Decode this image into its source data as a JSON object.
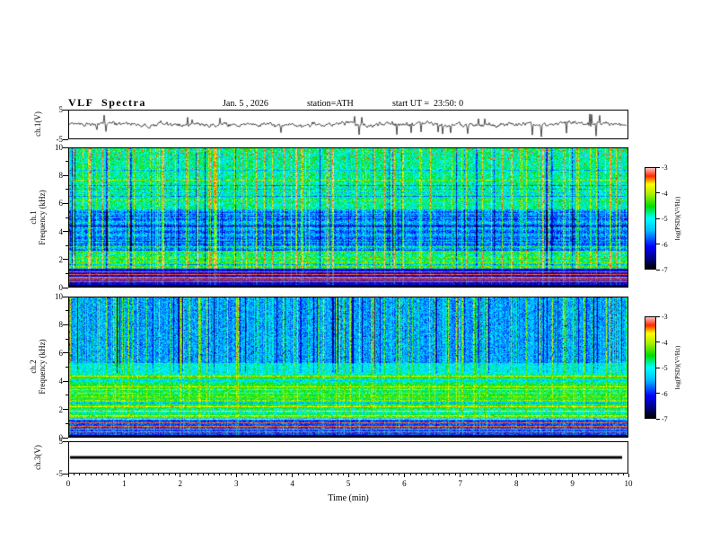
{
  "header": {
    "title": "VLF  Spectra",
    "date": "Jan. 5 , 2026",
    "station": "station=ATH",
    "start_ut": "start UT =  23:50: 0"
  },
  "x_axis": {
    "label": "Time (min)",
    "min": 0,
    "max": 10,
    "tick_labels": [
      "0",
      "1",
      "2",
      "3",
      "4",
      "5",
      "6",
      "7",
      "8",
      "9",
      "10"
    ]
  },
  "panels": {
    "ch1_wave": {
      "ylabel": "ch.1(V)",
      "ytick_labels": [
        "5",
        "-5"
      ]
    },
    "ch1_spec": {
      "ylabel_line1": "ch.1",
      "ylabel_line2": "Frequency (kHz)",
      "ytick_labels": [
        "10",
        "8",
        "6",
        "4",
        "2",
        "0"
      ]
    },
    "ch2_spec": {
      "ylabel_line1": "ch.2",
      "ylabel_line2": "Frequency (kHz)",
      "ytick_labels": [
        "10",
        "8",
        "6",
        "4",
        "2",
        "0"
      ]
    },
    "ch3_wave": {
      "ylabel": "ch.3(V)",
      "ytick_labels": [
        "5",
        "-5"
      ]
    }
  },
  "colorbar": {
    "label": "log(PSD)(V²/Hz)",
    "tick_labels": [
      "-3",
      "-4",
      "-5",
      "-6",
      "-7"
    ],
    "zlim": [
      -7,
      -3
    ]
  },
  "colormap": {
    "stops": [
      [
        0,
        "#000000"
      ],
      [
        0.1,
        "#00007f"
      ],
      [
        0.22,
        "#0000ff"
      ],
      [
        0.38,
        "#00bfff"
      ],
      [
        0.5,
        "#00ffff"
      ],
      [
        0.62,
        "#00dd00"
      ],
      [
        0.74,
        "#aaee00"
      ],
      [
        0.84,
        "#ffff00"
      ],
      [
        0.92,
        "#ff2a00"
      ],
      [
        1,
        "#ffbdbd"
      ]
    ]
  },
  "chart_data": [
    {
      "type": "line",
      "panel": "ch1_waveform",
      "ylabel": "ch.1(V)",
      "ylim": [
        -5,
        5
      ],
      "yticks": [
        5,
        -5
      ],
      "xlim_min": [
        0,
        10
      ],
      "description": "Broadband noisy voltage trace centered on 0 V, fluctuating within about ±1.5 V with frequent impulsive spikes reaching roughly ±4 V throughout the 10-minute record."
    },
    {
      "type": "heatmap",
      "panel": "ch1_spectrogram",
      "ylabel": "ch.1 Frequency (kHz)",
      "ylim_kHz": [
        0,
        10
      ],
      "yticks": [
        0,
        2,
        4,
        6,
        8,
        10
      ],
      "xlim_min": [
        0,
        10
      ],
      "z_label": "log(PSD)(V²/Hz)",
      "zlim": [
        -7,
        -3
      ],
      "features": [
        "dense vertical impulsive sferic stripes at all frequencies across the whole record",
        "quiet dark-blue band between about 2.5 and 5.5 kHz (PSD near -6.5)",
        "cyan-green speckled background near -5 elsewhere",
        "brighter green-yellow banding between about 1 and 2.5 kHz",
        "narrow red/orange horizontal lines below about 1.1 kHz",
        "black band at the lowest frequencies near 0 kHz"
      ]
    },
    {
      "type": "heatmap",
      "panel": "ch2_spectrogram",
      "ylabel": "ch.2 Frequency (kHz)",
      "ylim_kHz": [
        0,
        10
      ],
      "yticks": [
        0,
        2,
        4,
        6,
        8,
        10
      ],
      "xlim_min": [
        0,
        10
      ],
      "z_label": "log(PSD)(V²/Hz)",
      "zlim": [
        -7,
        -3
      ],
      "features": [
        "blue speckled background above about 5 kHz crossed by green vertical sferic stripes",
        "green background near -4.5 to -5 below about 4.5 kHz with fine horizontal banding",
        "orange/red horizontal lines near 1.3-2.2 kHz and about 4.3 kHz",
        "darker band with narrow red lines below about 1.2 kHz",
        "black band at the lowest frequencies near 0 kHz"
      ]
    },
    {
      "type": "line",
      "panel": "ch3_waveform",
      "ylabel": "ch.3(V)",
      "ylim": [
        -5,
        5
      ],
      "yticks": [
        5,
        -5
      ],
      "xlim_min": [
        0,
        10
      ],
      "description": "Flat thick black line at 0 V for the entire record (channel flat / no signal)."
    }
  ]
}
